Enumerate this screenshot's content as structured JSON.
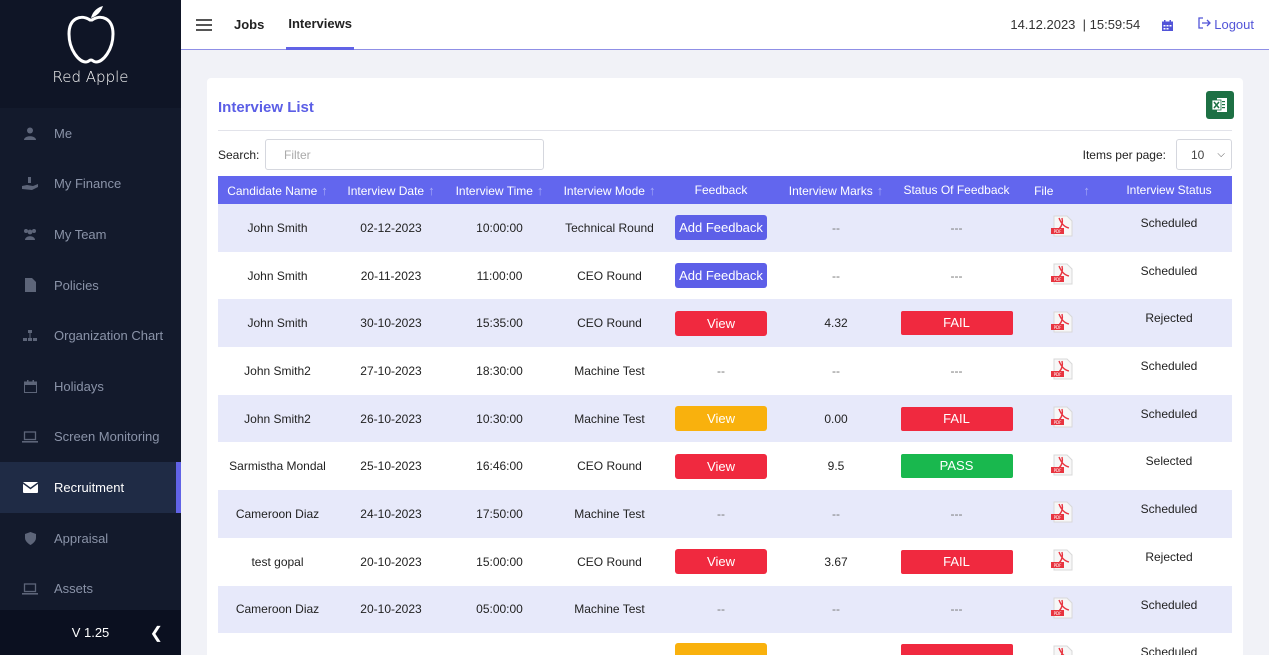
{
  "sidebar": {
    "brand": "Red Apple",
    "items": [
      {
        "label": "Me",
        "icon": "user-icon"
      },
      {
        "label": "My Finance",
        "icon": "hand-money-icon"
      },
      {
        "label": "My Team",
        "icon": "team-icon"
      },
      {
        "label": "Policies",
        "icon": "document-icon"
      },
      {
        "label": "Organization Chart",
        "icon": "org-chart-icon"
      },
      {
        "label": "Holidays",
        "icon": "calendar-icon"
      },
      {
        "label": "Screen Monitoring",
        "icon": "laptop-icon"
      },
      {
        "label": "Recruitment",
        "icon": "envelope-icon"
      },
      {
        "label": "Appraisal",
        "icon": "shield-icon"
      },
      {
        "label": "Assets",
        "icon": "laptop-icon"
      }
    ],
    "active": "Recruitment",
    "version": "V 1.25"
  },
  "header": {
    "tabs": [
      "Jobs",
      "Interviews"
    ],
    "active_tab": "Interviews",
    "datetime": "14.12.2023  | 15:59:54",
    "logout": "Logout"
  },
  "card": {
    "title": "Interview List",
    "search_label": "Search:",
    "search_placeholder": "Filter",
    "items_per_page_label": "Items per page:",
    "items_per_page_value": "10"
  },
  "table": {
    "columns": [
      "Candidate Name",
      "Interview Date",
      "Interview Time",
      "Interview Mode",
      "Feedback",
      "Interview Marks",
      "Status Of Feedback",
      "File",
      "Interview Status"
    ],
    "rows": [
      {
        "name": "John Smith",
        "date": "02-12-2023",
        "time": "10:00:00",
        "mode": "Technical Round",
        "feedback": "Add Feedback",
        "feedback_type": "add",
        "marks": "--",
        "status_fb": "---",
        "status_fb_type": "none",
        "status": "Scheduled"
      },
      {
        "name": "John Smith",
        "date": "20-11-2023",
        "time": "11:00:00",
        "mode": "CEO Round",
        "feedback": "Add Feedback",
        "feedback_type": "add",
        "marks": "--",
        "status_fb": "---",
        "status_fb_type": "none",
        "status": "Scheduled"
      },
      {
        "name": "John Smith",
        "date": "30-10-2023",
        "time": "15:35:00",
        "mode": "CEO Round",
        "feedback": "View",
        "feedback_type": "red",
        "marks": "4.32",
        "status_fb": "FAIL",
        "status_fb_type": "fail",
        "status": "Rejected"
      },
      {
        "name": "John Smith2",
        "date": "27-10-2023",
        "time": "18:30:00",
        "mode": "Machine Test",
        "feedback": "--",
        "feedback_type": "none",
        "marks": "--",
        "status_fb": "---",
        "status_fb_type": "none",
        "status": "Scheduled"
      },
      {
        "name": "John Smith2",
        "date": "26-10-2023",
        "time": "10:30:00",
        "mode": "Machine Test",
        "feedback": "View",
        "feedback_type": "yellow",
        "marks": "0.00",
        "status_fb": "FAIL",
        "status_fb_type": "fail",
        "status": "Scheduled"
      },
      {
        "name": "Sarmistha Mondal",
        "date": "25-10-2023",
        "time": "16:46:00",
        "mode": "CEO Round",
        "feedback": "View",
        "feedback_type": "red",
        "marks": "9.5",
        "status_fb": "PASS",
        "status_fb_type": "pass",
        "status": "Selected"
      },
      {
        "name": "Cameroon Diaz",
        "date": "24-10-2023",
        "time": "17:50:00",
        "mode": "Machine Test",
        "feedback": "--",
        "feedback_type": "none",
        "marks": "--",
        "status_fb": "---",
        "status_fb_type": "none",
        "status": "Scheduled"
      },
      {
        "name": "test gopal",
        "date": "20-10-2023",
        "time": "15:00:00",
        "mode": "CEO Round",
        "feedback": "View",
        "feedback_type": "red",
        "marks": "3.67",
        "status_fb": "FAIL",
        "status_fb_type": "fail",
        "status": "Rejected"
      },
      {
        "name": "Cameroon Diaz",
        "date": "20-10-2023",
        "time": "05:00:00",
        "mode": "Machine Test",
        "feedback": "--",
        "feedback_type": "none",
        "marks": "--",
        "status_fb": "---",
        "status_fb_type": "none",
        "status": "Scheduled"
      },
      {
        "name": "",
        "date": "",
        "time": "",
        "mode": "",
        "feedback": "",
        "feedback_type": "yellow",
        "marks": "",
        "status_fb": "",
        "status_fb_type": "fail",
        "status": "Scheduled"
      }
    ]
  },
  "colors": {
    "accent": "#6266ee",
    "sidebar_bg": "#131a2c",
    "fail": "#f0293f",
    "pass": "#19b84e",
    "warning": "#f9b10d",
    "excel": "#1d7044"
  }
}
